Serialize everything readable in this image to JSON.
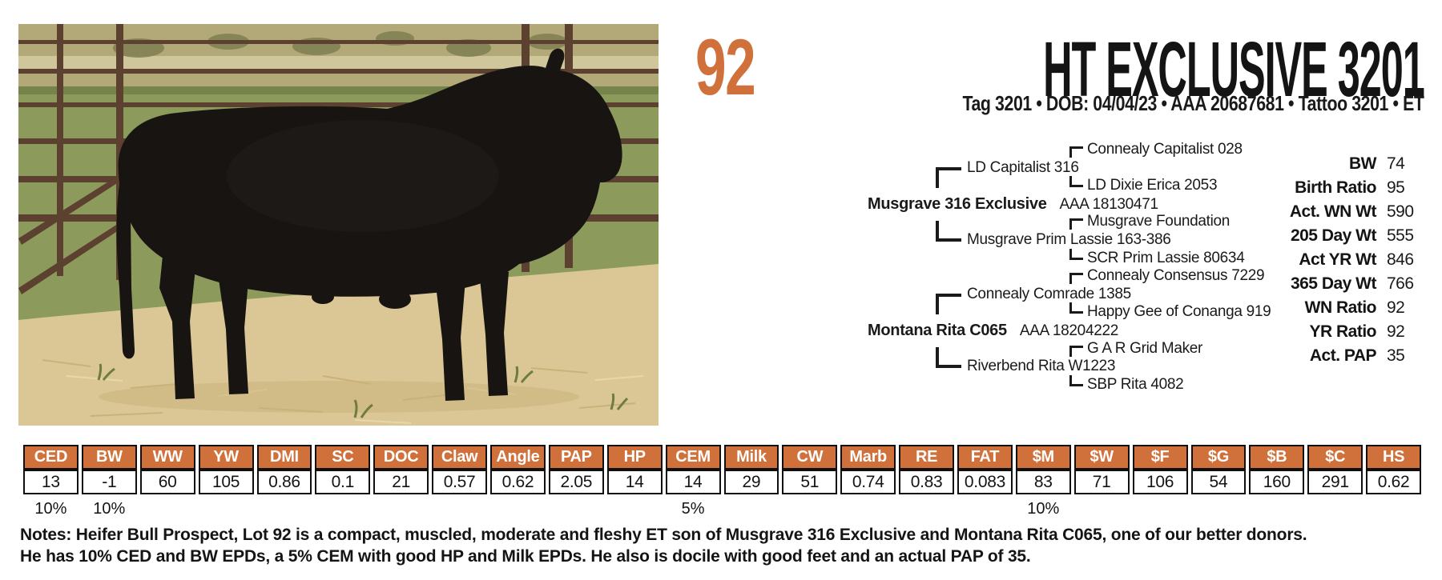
{
  "colors": {
    "accent": "#d0703a",
    "table_border": "#101010",
    "header_text": "#ffffff"
  },
  "lot_number": "92",
  "header": {
    "title": "HT EXCLUSIVE 3201",
    "meta": "Tag 3201 • DOB: 04/04/23 • AAA 20687681 • Tattoo 3201  •  ET"
  },
  "photo": {
    "description": "black Angus bull standing in straw pen with metal fence and pasture behind"
  },
  "pedigree": {
    "rows": [
      {
        "gen": 3,
        "bracket": "top",
        "name": "Connealy Capitalist 028"
      },
      {
        "gen": 2,
        "bracket": "top",
        "name": "LD Capitalist 316"
      },
      {
        "gen": 3,
        "bracket": "bot",
        "name": "LD Dixie Erica 2053"
      },
      {
        "gen": 1,
        "name": "Musgrave 316 Exclusive",
        "reg": "AAA 18130471"
      },
      {
        "gen": 3,
        "bracket": "top",
        "name": "Musgrave Foundation"
      },
      {
        "gen": 2,
        "bracket": "bot",
        "name": "Musgrave Prim Lassie 163-386"
      },
      {
        "gen": 3,
        "bracket": "bot",
        "name": "SCR Prim Lassie 80634"
      },
      {
        "gen": 3,
        "bracket": "top",
        "name": "Connealy Consensus 7229"
      },
      {
        "gen": 2,
        "bracket": "top",
        "name": "Connealy Comrade 1385"
      },
      {
        "gen": 3,
        "bracket": "bot",
        "name": "Happy Gee of Conanga 919"
      },
      {
        "gen": 1,
        "name": "Montana Rita C065",
        "reg": "AAA 18204222"
      },
      {
        "gen": 3,
        "bracket": "top",
        "name": "G A R Grid Maker"
      },
      {
        "gen": 2,
        "bracket": "bot",
        "name": "Riverbend Rita W1223"
      },
      {
        "gen": 3,
        "bracket": "bot",
        "name": "SBP Rita 4082"
      }
    ]
  },
  "stats": {
    "rows": [
      {
        "label": "BW",
        "value": "74"
      },
      {
        "label": "Birth Ratio",
        "value": "95"
      },
      {
        "label": "Act. WN Wt",
        "value": "590"
      },
      {
        "label": "205 Day Wt",
        "value": "555"
      },
      {
        "label": "Act YR Wt",
        "value": "846"
      },
      {
        "label": "365 Day Wt",
        "value": "766"
      },
      {
        "label": "WN Ratio",
        "value": "92"
      },
      {
        "label": "YR Ratio",
        "value": "92"
      },
      {
        "label": "Act. PAP",
        "value": "35"
      }
    ]
  },
  "epd": {
    "columns": [
      "CED",
      "BW",
      "WW",
      "YW",
      "DMI",
      "SC",
      "DOC",
      "Claw",
      "Angle",
      "PAP",
      "HP",
      "CEM",
      "Milk",
      "CW",
      "Marb",
      "RE",
      "FAT",
      "$M",
      "$W",
      "$F",
      "$G",
      "$B",
      "$C",
      "HS"
    ],
    "values": [
      "13",
      "-1",
      "60",
      "105",
      "0.86",
      "0.1",
      "21",
      "0.57",
      "0.62",
      "2.05",
      "14",
      "14",
      "29",
      "51",
      "0.74",
      "0.83",
      "0.083",
      "83",
      "71",
      "106",
      "54",
      "160",
      "291",
      "0.62"
    ],
    "percentiles": {
      "CED": "10%",
      "BW": "10%",
      "CEM": "5%",
      "$M": "10%"
    }
  },
  "notes": {
    "lines": [
      "Notes: Heifer Bull Prospect, Lot 92 is a compact, muscled, moderate and fleshy ET son of Musgrave 316 Exclusive and Montana Rita C065, one of our better donors.",
      "He has 10% CED and BW EPDs, a 5% CEM with good HP and Milk EPDs. He also is docile with good feet and an actual PAP of 35."
    ]
  }
}
